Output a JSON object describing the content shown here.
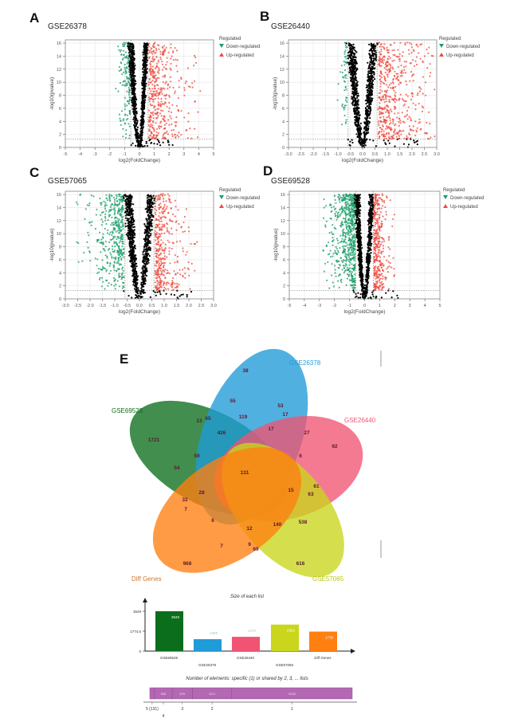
{
  "chart_data": [
    {
      "type": "scatter",
      "panel": "A",
      "title": "GSE26378",
      "xlabel": "log2(FoldChange)",
      "ylabel": "-log10(pvalue)",
      "xlim": [
        -5,
        5
      ],
      "ylim": [
        0,
        16.5
      ],
      "xticks": [
        "-5",
        "-4",
        "-3",
        "-2",
        "-1",
        "0",
        "1",
        "2",
        "3",
        "4",
        "5"
      ],
      "xtick_values": [
        -5,
        -4,
        -3,
        -2,
        -1,
        0,
        1,
        2,
        3,
        4,
        5
      ],
      "yticks": [
        "0",
        "2",
        "4",
        "6",
        "8",
        "10",
        "12",
        "14",
        "16"
      ],
      "ytick_values": [
        0,
        2,
        4,
        6,
        8,
        10,
        12,
        14,
        16
      ],
      "fc_threshold": 0.585,
      "pvalue_threshold_line": 1.3,
      "grid": true,
      "legend": {
        "title": "Regulated",
        "entries": [
          "Down-regulated",
          "Up-regulated"
        ],
        "position": "right"
      }
    },
    {
      "type": "scatter",
      "panel": "B",
      "title": "GSE26440",
      "xlabel": "log2(FoldChange)",
      "ylabel": "-log10(pvalue)",
      "xlim": [
        -3,
        3
      ],
      "ylim": [
        0,
        16.5
      ],
      "xticks": [
        "-3.0",
        "-2.5",
        "-2.0",
        "-1.5",
        "-1.0",
        "-0.5",
        "0.0",
        "0.5",
        "1.0",
        "1.5",
        "2.0",
        "2.5",
        "3.0"
      ],
      "xtick_values": [
        -3,
        -2.5,
        -2,
        -1.5,
        -1,
        -0.5,
        0,
        0.5,
        1,
        1.5,
        2,
        2.5,
        3
      ],
      "yticks": [
        "0",
        "2",
        "4",
        "6",
        "8",
        "10",
        "12",
        "14",
        "16"
      ],
      "ytick_values": [
        0,
        2,
        4,
        6,
        8,
        10,
        12,
        14,
        16
      ],
      "fc_threshold": 0.585,
      "pvalue_threshold_line": 1.3,
      "grid": true,
      "legend": {
        "title": "Regulated",
        "entries": [
          "Down-regulated",
          "Up-regulated"
        ],
        "position": "right"
      }
    },
    {
      "type": "scatter",
      "panel": "C",
      "title": "GSE57065",
      "xlabel": "log2(FoldChange)",
      "ylabel": "-log10(pvalue)",
      "xlim": [
        -3,
        3
      ],
      "ylim": [
        0,
        16.5
      ],
      "xticks": [
        "-3.0",
        "-2.5",
        "-2.0",
        "-1.5",
        "-1.0",
        "-0.5",
        "0.0",
        "0.5",
        "1.0",
        "1.5",
        "2.0",
        "2.5",
        "3.0"
      ],
      "xtick_values": [
        -3,
        -2.5,
        -2,
        -1.5,
        -1,
        -0.5,
        0,
        0.5,
        1,
        1.5,
        2,
        2.5,
        3
      ],
      "yticks": [
        "0",
        "2",
        "4",
        "6",
        "8",
        "10",
        "12",
        "14",
        "16"
      ],
      "ytick_values": [
        0,
        2,
        4,
        6,
        8,
        10,
        12,
        14,
        16
      ],
      "fc_threshold": 0.585,
      "pvalue_threshold_line": 1.3,
      "grid": true,
      "legend": {
        "title": "Regulated",
        "entries": [
          "Down-regulated",
          "Up-regulated"
        ],
        "position": "right"
      }
    },
    {
      "type": "scatter",
      "panel": "D",
      "title": "GSE69528",
      "xlabel": "log2(FoldChange)",
      "ylabel": "-log10(pvalue)",
      "xlim": [
        -5,
        5
      ],
      "ylim": [
        0,
        16.5
      ],
      "xticks": [
        "-5",
        "-4",
        "-3",
        "-2",
        "-1",
        "0",
        "1",
        "2",
        "3",
        "4",
        "5"
      ],
      "xtick_values": [
        -5,
        -4,
        -3,
        -2,
        -1,
        0,
        1,
        2,
        3,
        4,
        5
      ],
      "yticks": [
        "0",
        "2",
        "4",
        "6",
        "8",
        "10",
        "12",
        "14",
        "16"
      ],
      "ytick_values": [
        0,
        2,
        4,
        6,
        8,
        10,
        12,
        14,
        16
      ],
      "fc_threshold": 0.585,
      "pvalue_threshold_line": 1.3,
      "grid": true,
      "legend": {
        "title": "Regulated",
        "entries": [
          "Down-regulated",
          "Up-regulated"
        ],
        "position": "right"
      }
    },
    {
      "type": "venn",
      "panel": "E",
      "sets": [
        "GSE26378",
        "GSE26440",
        "GSE57065",
        "Diff Genes",
        "GSE69528"
      ],
      "region_counts": [
        "38",
        "55",
        "53",
        "17",
        "13",
        "65",
        "119",
        "426",
        "17",
        "27",
        "1721",
        "92",
        "59",
        "6",
        "54",
        "131",
        "28",
        "15",
        "61",
        "63",
        "32",
        "7",
        "6",
        "12",
        "140",
        "538",
        "7",
        "9",
        "69",
        "968",
        "616"
      ]
    },
    {
      "type": "bar",
      "title": "Size of each list",
      "categories": [
        "GSE69528",
        "GSE26378",
        "GSE26440",
        "GSE57065",
        "Diff Genes"
      ],
      "values": [
        3549,
        1059,
        1270,
        2362,
        1735
      ],
      "yticks": [
        "0",
        "1774.5",
        "3549"
      ],
      "ylim": [
        0,
        3549
      ]
    },
    {
      "type": "bar",
      "orientation": "horizontal-stacked",
      "title": "Number of elements: specific (1) or shared by 2, 3, ... lists",
      "categories": [
        "5 (131)",
        "4",
        "3",
        "2",
        "1"
      ],
      "values": [
        131,
        508,
        576,
        1121,
        3435
      ]
    }
  ],
  "colors": {
    "down": "#1a9e6a",
    "up": "#ef4b3f",
    "neutral": "#000000",
    "GSE69528": "#0b6e1c",
    "GSE26378": "#1f9bd7",
    "GSE26440": "#f05472",
    "GSE57065": "#c9d61c",
    "Diff Genes": "#ff7f10",
    "shared_bar": "#b468b4"
  }
}
